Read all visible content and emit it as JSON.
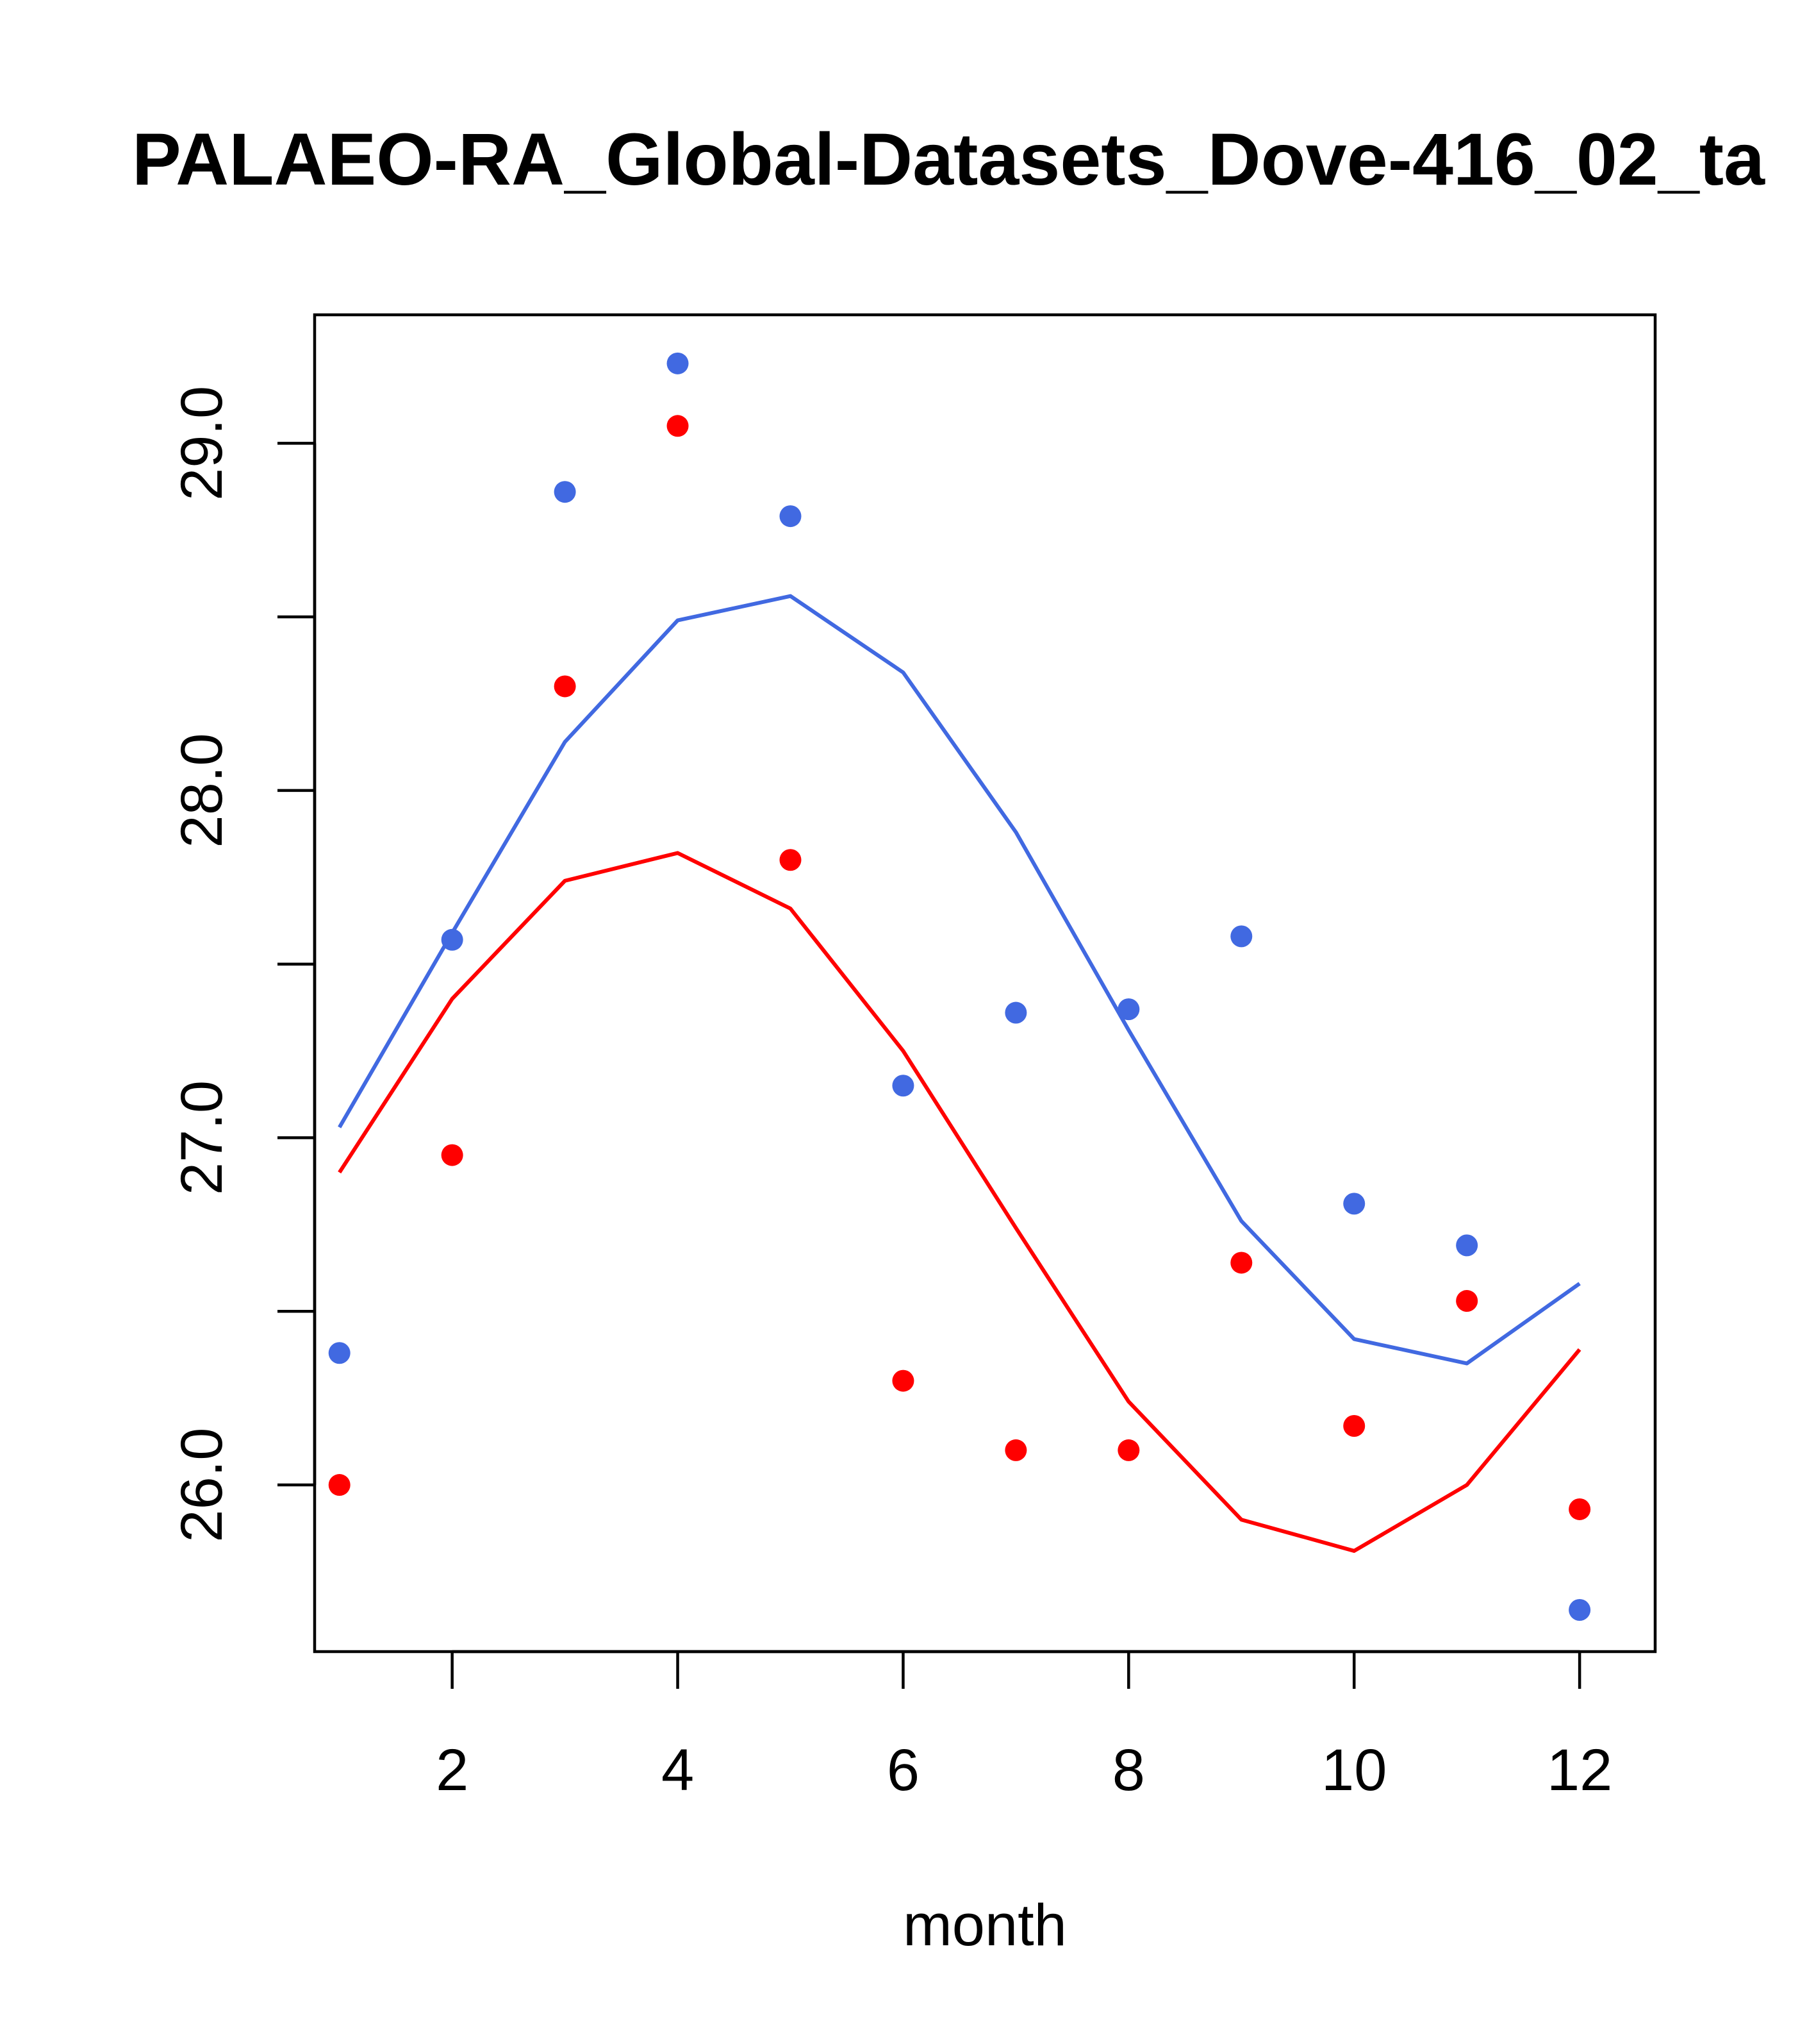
{
  "chart_data": {
    "type": "line",
    "title": "PALAEO-RA_Global-Datasets_Dove-416_02_ta",
    "xlabel": "month",
    "ylabel": "",
    "xlim": [
      0.78,
      12.67
    ],
    "ylim": [
      25.52,
      29.37
    ],
    "x_ticks": [
      2,
      4,
      6,
      8,
      10,
      12
    ],
    "x_tick_labels": [
      "2",
      "4",
      "6",
      "8",
      "10",
      "12"
    ],
    "y_ticks": [
      26.0,
      26.5,
      27.0,
      27.5,
      28.0,
      28.5,
      29.0
    ],
    "y_tick_labels": [
      "26.0",
      "",
      "27.0",
      "",
      "28.0",
      "",
      "29.0"
    ],
    "x": [
      1,
      2,
      3,
      4,
      5,
      6,
      7,
      8,
      9,
      10,
      11,
      12
    ],
    "series": [
      {
        "name": "blue points",
        "kind": "points",
        "color": "#4169E1",
        "values": [
          26.38,
          27.57,
          28.86,
          29.23,
          28.79,
          27.15,
          27.36,
          27.37,
          27.58,
          26.81,
          26.69,
          25.64
        ]
      },
      {
        "name": "red points",
        "kind": "points",
        "color": "#FF0000",
        "values": [
          26.0,
          26.95,
          28.3,
          29.05,
          27.8,
          26.3,
          26.1,
          26.1,
          26.64,
          26.17,
          26.53,
          25.93
        ]
      },
      {
        "name": "blue line",
        "kind": "line",
        "color": "#4169E1",
        "values": [
          27.03,
          27.59,
          28.14,
          28.49,
          28.56,
          28.34,
          27.88,
          27.31,
          26.76,
          26.42,
          26.35,
          26.58
        ]
      },
      {
        "name": "red line",
        "kind": "line",
        "color": "#FF0000",
        "values": [
          26.9,
          27.4,
          27.74,
          27.82,
          27.66,
          27.25,
          26.74,
          26.24,
          25.9,
          25.81,
          26.0,
          26.39
        ]
      }
    ]
  }
}
